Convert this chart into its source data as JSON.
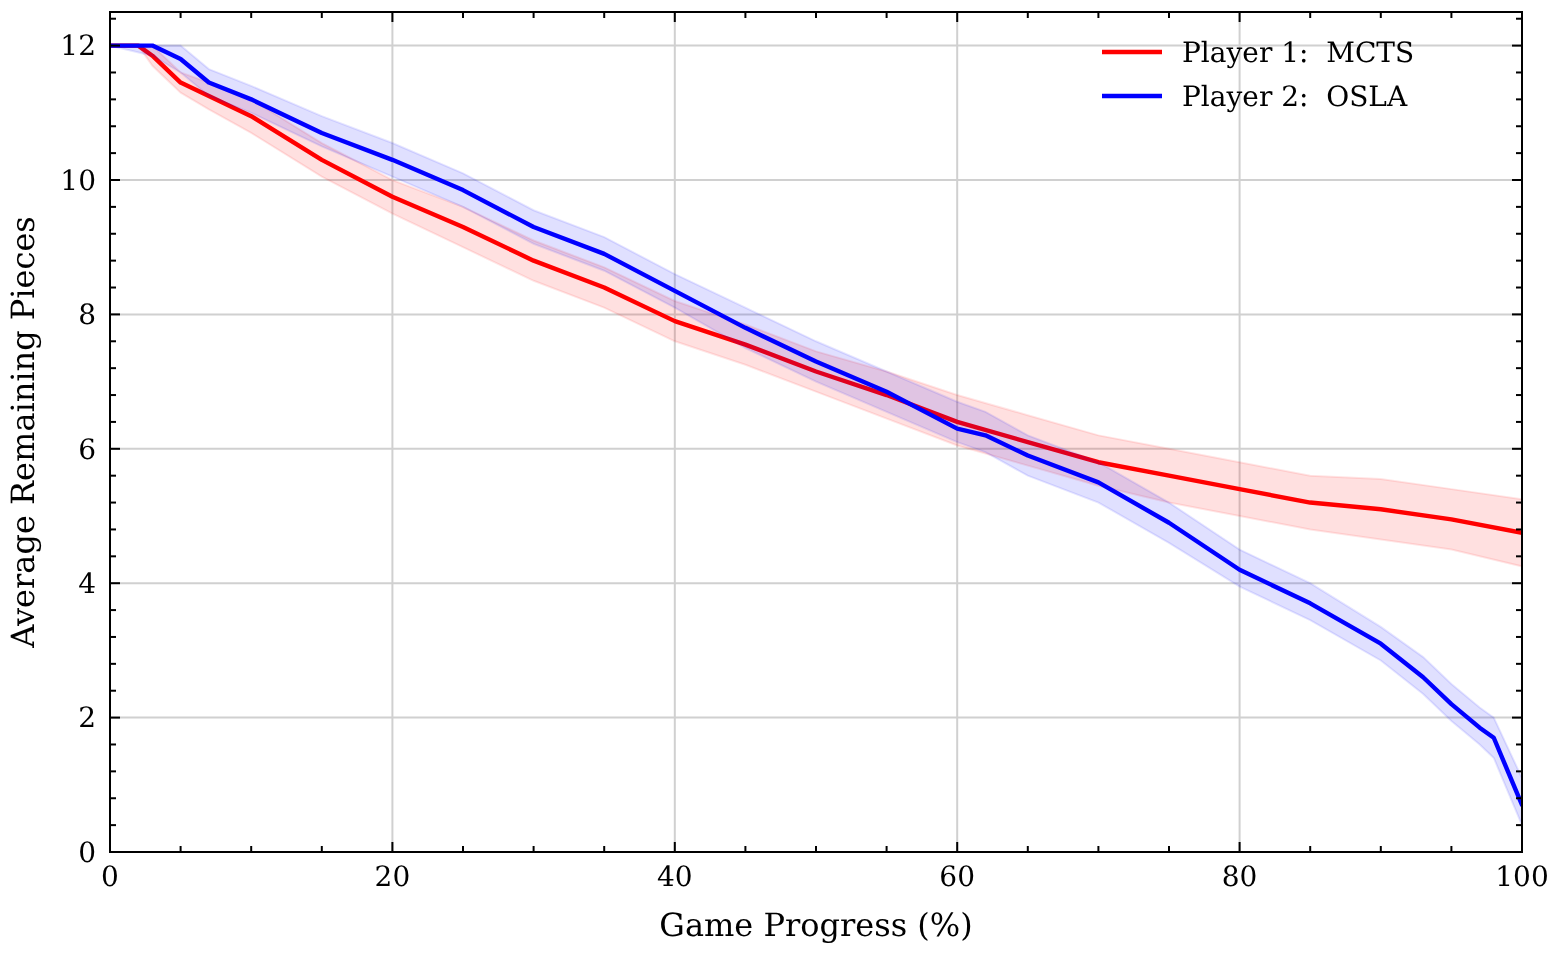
{
  "chart_data": {
    "type": "line",
    "xlabel": "Game Progress (%)",
    "ylabel": "Average Remaining Pieces",
    "xlim": [
      0,
      100
    ],
    "ylim": [
      0,
      12.5
    ],
    "xticks": [
      0,
      {
        "value": 5,
        "label": null
      },
      {
        "value": 10,
        "label": null
      },
      {
        "value": 15,
        "label": null
      },
      20,
      {
        "value": 25,
        "label": null
      },
      {
        "value": 30,
        "label": null
      },
      {
        "value": 35,
        "label": null
      },
      40,
      {
        "value": 45,
        "label": null
      },
      {
        "value": 50,
        "label": null
      },
      {
        "value": 55,
        "label": null
      },
      60,
      {
        "value": 65,
        "label": null
      },
      {
        "value": 70,
        "label": null
      },
      {
        "value": 75,
        "label": null
      },
      80,
      {
        "value": 85,
        "label": null
      },
      {
        "value": 90,
        "label": null
      },
      {
        "value": 95,
        "label": null
      },
      100
    ],
    "yticks": [
      0,
      {
        "value": 0.4,
        "label": null
      },
      {
        "value": 0.8,
        "label": null
      },
      {
        "value": 1.2,
        "label": null
      },
      {
        "value": 1.6,
        "label": null
      },
      2,
      {
        "value": 2.4,
        "label": null
      },
      {
        "value": 2.8,
        "label": null
      },
      {
        "value": 3.2,
        "label": null
      },
      {
        "value": 3.6,
        "label": null
      },
      4,
      {
        "value": 4.4,
        "label": null
      },
      {
        "value": 4.8,
        "label": null
      },
      {
        "value": 5.2,
        "label": null
      },
      {
        "value": 5.6,
        "label": null
      },
      6,
      {
        "value": 6.4,
        "label": null
      },
      {
        "value": 6.8,
        "label": null
      },
      {
        "value": 7.2,
        "label": null
      },
      {
        "value": 7.6,
        "label": null
      },
      8,
      {
        "value": 8.4,
        "label": null
      },
      {
        "value": 8.8,
        "label": null
      },
      {
        "value": 9.2,
        "label": null
      },
      {
        "value": 9.6,
        "label": null
      },
      10,
      {
        "value": 10.4,
        "label": null
      },
      {
        "value": 10.8,
        "label": null
      },
      {
        "value": 11.2,
        "label": null
      },
      {
        "value": 11.6,
        "label": null
      },
      12,
      {
        "value": 12.4,
        "label": null
      }
    ],
    "grid": true,
    "legend": "top right",
    "marker": "none",
    "line_style": "solid",
    "series": [
      {
        "name": "Player 1:  MCTS",
        "color": "#ff0000",
        "x": [
          0,
          2,
          3,
          5,
          7,
          10,
          15,
          20,
          25,
          30,
          35,
          40,
          45,
          50,
          55,
          60,
          65,
          70,
          75,
          80,
          85,
          90,
          95,
          100
        ],
        "values": [
          12,
          12,
          11.85,
          11.45,
          11.25,
          10.95,
          10.3,
          9.75,
          9.3,
          8.8,
          8.4,
          7.9,
          7.55,
          7.15,
          6.8,
          6.4,
          6.1,
          5.8,
          5.6,
          5.4,
          5.2,
          5.1,
          4.95,
          4.75
        ],
        "lower": [
          12,
          12,
          11.7,
          11.3,
          11.05,
          10.7,
          10.05,
          9.5,
          9.0,
          8.5,
          8.1,
          7.6,
          7.25,
          6.85,
          6.45,
          6.05,
          5.75,
          5.45,
          5.2,
          5.0,
          4.8,
          4.65,
          4.5,
          4.25
        ],
        "upper": [
          12,
          12,
          12,
          11.6,
          11.45,
          11.2,
          10.55,
          10.0,
          9.6,
          9.1,
          8.7,
          8.2,
          7.85,
          7.45,
          7.15,
          6.8,
          6.5,
          6.2,
          6.0,
          5.8,
          5.6,
          5.55,
          5.4,
          5.25
        ]
      },
      {
        "name": "Player 2:  OSLA",
        "color": "#0000ff",
        "x": [
          0,
          3,
          5,
          7,
          10,
          15,
          20,
          25,
          30,
          35,
          40,
          45,
          50,
          55,
          60,
          62,
          65,
          70,
          75,
          80,
          85,
          90,
          93,
          95,
          97,
          98,
          99,
          100
        ],
        "values": [
          12,
          12,
          11.8,
          11.45,
          11.2,
          10.7,
          10.3,
          9.85,
          9.3,
          8.9,
          8.35,
          7.8,
          7.3,
          6.85,
          6.3,
          6.2,
          5.9,
          5.5,
          4.9,
          4.2,
          3.7,
          3.1,
          2.6,
          2.2,
          1.85,
          1.7,
          1.2,
          0.7
        ],
        "lower": [
          12,
          11.85,
          11.6,
          11.25,
          11.0,
          10.5,
          10.05,
          9.6,
          9.05,
          8.65,
          8.1,
          7.5,
          7.0,
          6.55,
          6.1,
          5.95,
          5.6,
          5.2,
          4.6,
          3.95,
          3.45,
          2.85,
          2.35,
          1.95,
          1.6,
          1.4,
          0.9,
          0.4
        ],
        "upper": [
          12,
          12,
          12,
          11.65,
          11.4,
          10.95,
          10.55,
          10.1,
          9.55,
          9.15,
          8.6,
          8.1,
          7.6,
          7.15,
          6.7,
          6.55,
          6.2,
          5.8,
          5.2,
          4.5,
          4.0,
          3.35,
          2.9,
          2.5,
          2.15,
          2.0,
          1.55,
          1.1
        ]
      }
    ]
  }
}
